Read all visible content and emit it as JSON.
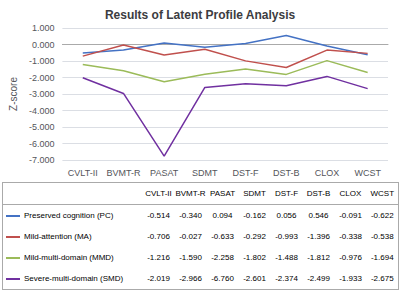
{
  "chart_data": {
    "type": "line",
    "title": "Results of Latent Profile Analysis",
    "categories": [
      "CVLT-II",
      "BVMT-R",
      "PASAT",
      "SDMT",
      "DST-F",
      "DST-B",
      "CLOX",
      "WCST"
    ],
    "series": [
      {
        "name": "Preserved cognition (PC)",
        "color": "#4472C4",
        "values": [
          -0.514,
          -0.34,
          0.094,
          -0.162,
          0.056,
          0.546,
          -0.091,
          -0.622
        ],
        "value_labels": [
          "-0.514",
          "-0.340",
          "0.094",
          "-0.162",
          "0.056",
          "0.546",
          "-0.091",
          "-0.622"
        ]
      },
      {
        "name": "Mild-attention (MA)",
        "color": "#C0504D",
        "values": [
          -0.706,
          -0.027,
          -0.633,
          -0.292,
          -0.993,
          -1.396,
          -0.338,
          -0.538
        ],
        "value_labels": [
          "-0.706",
          "-0.027",
          "-0.633",
          "-0.292",
          "-0.993",
          "-1.396",
          "-0.338",
          "-0.538"
        ]
      },
      {
        "name": "Mild-multi-domain (MMD)",
        "color": "#9BBB59",
        "values": [
          -1.216,
          -1.59,
          -2.258,
          -1.802,
          -1.488,
          -1.812,
          -0.976,
          -1.694
        ],
        "value_labels": [
          "-1.216",
          "-1.590",
          "-2.258",
          "-1.802",
          "-1.488",
          "-1.812",
          "-0.976",
          "-1.694"
        ]
      },
      {
        "name": "Severe-multi-domain (SMD)",
        "color": "#7030A0",
        "values": [
          -2.019,
          -2.966,
          -6.76,
          -2.601,
          -2.374,
          -2.499,
          -1.933,
          -2.675
        ],
        "value_labels": [
          "-2.019",
          "-2.966",
          "-6.760",
          "-2.601",
          "-2.374",
          "-2.499",
          "-1.933",
          "-2.675"
        ]
      }
    ],
    "ylabel": "Z-score",
    "ylim": [
      -7.0,
      1.0
    ],
    "yticks": [
      {
        "value": 1.0,
        "label": "1.000"
      },
      {
        "value": 0.0,
        "label": "0.000"
      },
      {
        "value": -1.0,
        "label": "-1.000"
      },
      {
        "value": -2.0,
        "label": "-2.000"
      },
      {
        "value": -3.0,
        "label": "-3.000"
      },
      {
        "value": -4.0,
        "label": "-4.000"
      },
      {
        "value": -5.0,
        "label": "-5.000"
      },
      {
        "value": -6.0,
        "label": "-6.000"
      },
      {
        "value": -7.0,
        "label": "-7.000"
      }
    ],
    "grid": true
  }
}
